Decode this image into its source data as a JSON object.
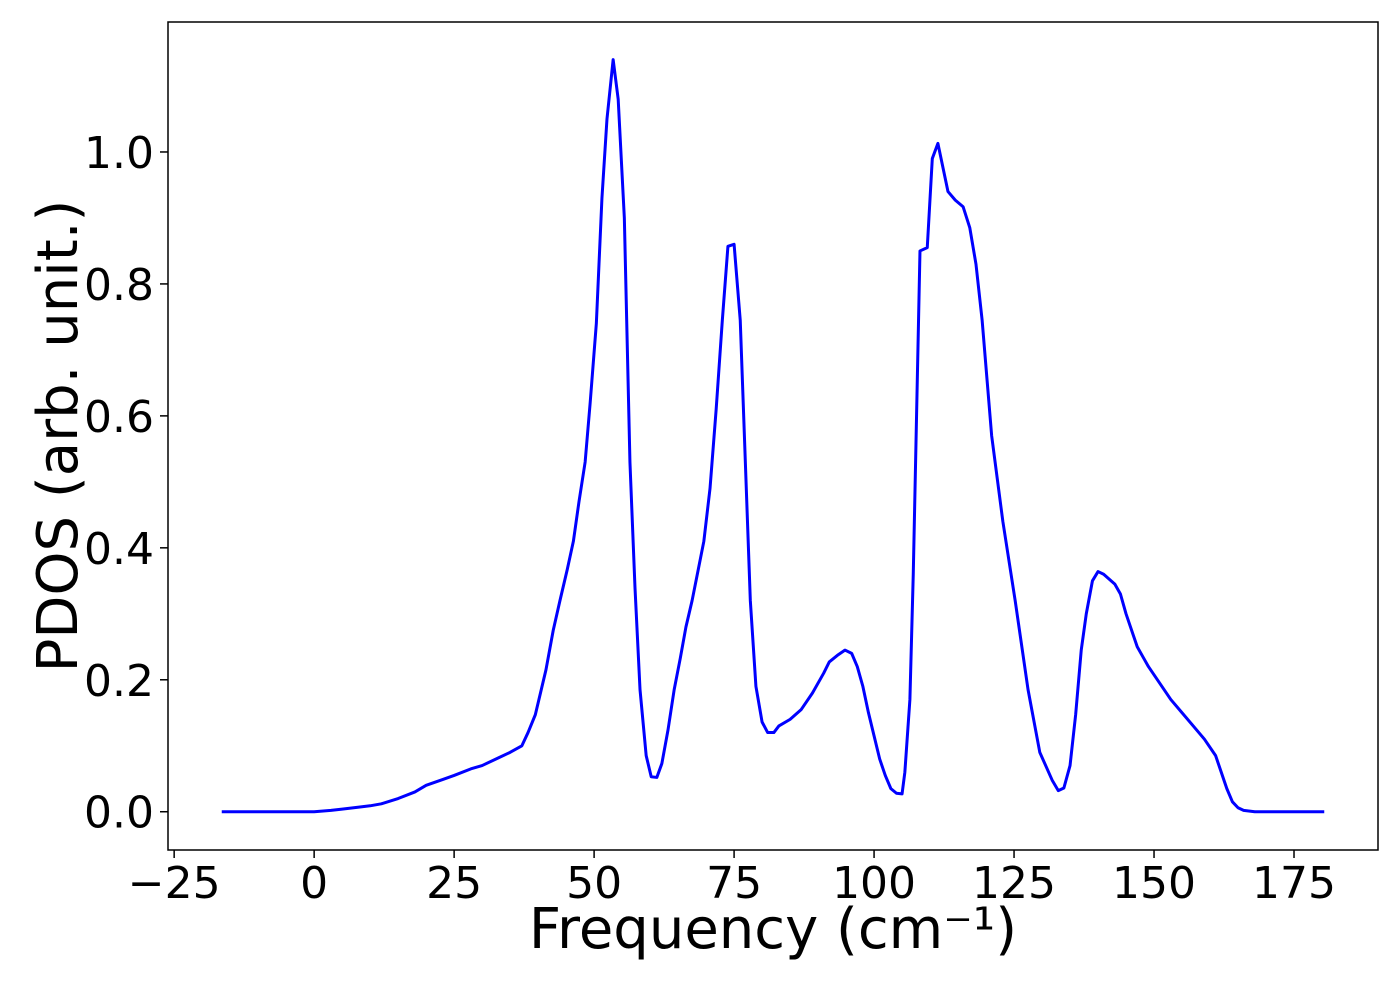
{
  "chart_data": {
    "type": "line",
    "xlabel": "Frequency (cm⁻¹)",
    "ylabel": "PDOS (arb. unit.)",
    "color": "#0000ff",
    "x": [
      -16.5,
      -10,
      -5,
      0,
      3,
      5,
      8,
      10,
      12,
      15,
      18,
      20,
      23,
      25,
      28,
      30,
      33,
      35,
      37.1,
      38.2,
      39.5,
      41.4,
      42.7,
      43.9,
      45.2,
      46.3,
      47.3,
      48.4,
      49.3,
      50.4,
      51.4,
      52.3,
      53.4,
      54.3,
      55.4,
      56.4,
      57.3,
      58.2,
      59.3,
      60.2,
      61.2,
      62.1,
      63.2,
      64.3,
      65.4,
      66.4,
      67.5,
      68.6,
      69.6,
      70.7,
      71.8,
      72.9,
      73.9,
      75,
      76.1,
      77.9,
      78.9,
      80,
      81,
      82.1,
      83,
      85,
      87,
      89,
      91,
      92,
      93.6,
      94.8,
      96,
      97,
      98,
      99,
      100,
      101,
      102,
      103,
      104,
      105,
      105.5,
      106.4,
      107,
      108.2,
      109.5,
      110.4,
      111.4,
      113.2,
      114.5,
      115.9,
      117.1,
      118.2,
      119.3,
      121,
      123,
      125.2,
      127.5,
      129.6,
      131.8,
      132.9,
      133.9,
      135,
      136,
      137,
      137.9,
      139,
      140,
      141,
      143,
      144,
      145,
      147,
      149,
      151,
      153,
      155,
      157,
      159,
      161,
      162,
      163,
      164,
      165,
      166,
      168,
      175,
      180.4
    ],
    "values": [
      0,
      0,
      0,
      0,
      0.002,
      0.004,
      0.007,
      0.009,
      0.012,
      0.02,
      0.03,
      0.04,
      0.049,
      0.055,
      0.065,
      0.07,
      0.082,
      0.09,
      0.1,
      0.12,
      0.147,
      0.215,
      0.275,
      0.32,
      0.367,
      0.41,
      0.47,
      0.53,
      0.62,
      0.74,
      0.93,
      1.05,
      1.14,
      1.08,
      0.9,
      0.53,
      0.34,
      0.185,
      0.085,
      0.053,
      0.052,
      0.073,
      0.124,
      0.185,
      0.233,
      0.28,
      0.32,
      0.367,
      0.41,
      0.49,
      0.61,
      0.745,
      0.857,
      0.86,
      0.745,
      0.32,
      0.19,
      0.136,
      0.12,
      0.12,
      0.13,
      0.14,
      0.155,
      0.18,
      0.21,
      0.227,
      0.238,
      0.245,
      0.24,
      0.22,
      0.19,
      0.15,
      0.115,
      0.08,
      0.055,
      0.035,
      0.028,
      0.027,
      0.06,
      0.17,
      0.36,
      0.85,
      0.855,
      0.99,
      1.013,
      0.94,
      0.927,
      0.917,
      0.885,
      0.83,
      0.745,
      0.57,
      0.44,
      0.32,
      0.185,
      0.09,
      0.048,
      0.032,
      0.036,
      0.07,
      0.147,
      0.245,
      0.3,
      0.35,
      0.364,
      0.36,
      0.345,
      0.33,
      0.3,
      0.25,
      0.22,
      0.195,
      0.17,
      0.15,
      0.13,
      0.11,
      0.085,
      0.06,
      0.035,
      0.015,
      0.006,
      0.002,
      0,
      0,
      0
    ],
    "xlim": [
      -26.1,
      190
    ],
    "ylim": [
      -0.058,
      1.197
    ],
    "xticks": [
      {
        "value": -25,
        "label": "−25"
      },
      0,
      25,
      50,
      75,
      100,
      125,
      150,
      175
    ],
    "yticks": [
      {
        "value": 0,
        "label": "0.0"
      },
      {
        "value": 0.2,
        "label": "0.2"
      },
      {
        "value": 0.4,
        "label": "0.4"
      },
      {
        "value": 0.6,
        "label": "0.6"
      },
      {
        "value": 0.8,
        "label": "0.8"
      },
      {
        "value": 1,
        "label": "1.0"
      }
    ],
    "grid": false
  }
}
